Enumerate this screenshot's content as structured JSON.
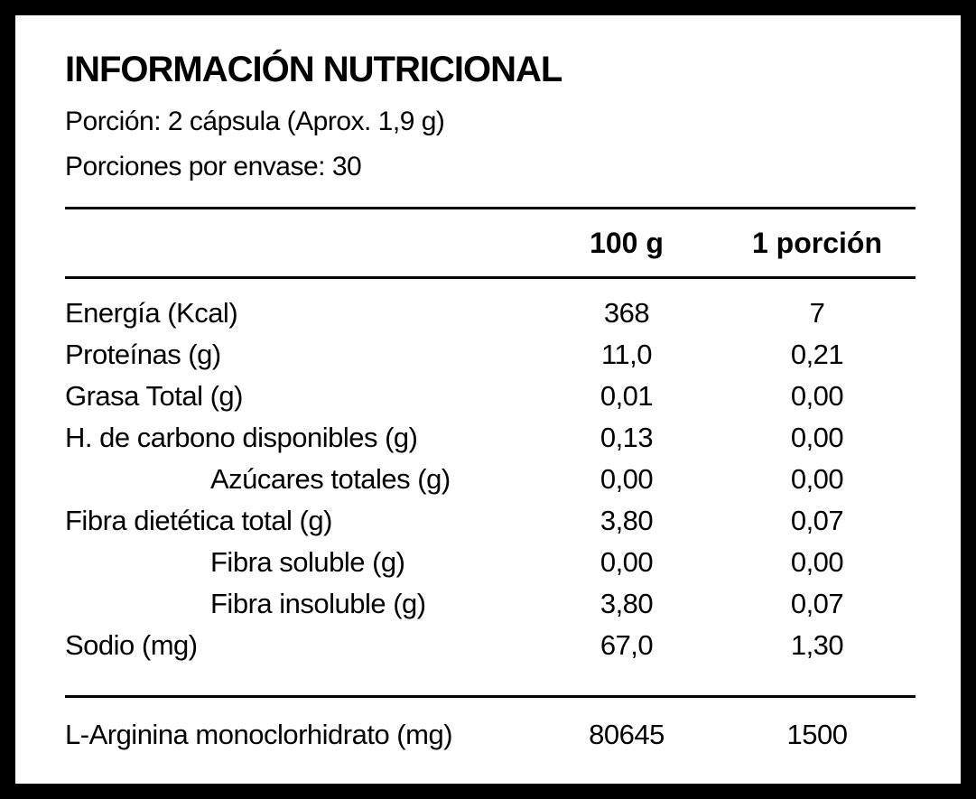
{
  "title": "INFORMACIÓN NUTRICIONAL",
  "serving": "Porción: 2 cápsula (Aprox. 1,9 g)",
  "servings_per_container": "Porciones por envase: 30",
  "table": {
    "columns": [
      "100 g",
      "1 porción"
    ],
    "rows": [
      {
        "label": "Energía (Kcal)",
        "indent": false,
        "values": [
          "368",
          "7"
        ]
      },
      {
        "label": "Proteínas (g)",
        "indent": false,
        "values": [
          "11,0",
          "0,21"
        ]
      },
      {
        "label": "Grasa Total (g)",
        "indent": false,
        "values": [
          "0,01",
          "0,00"
        ]
      },
      {
        "label": "H. de carbono disponibles (g)",
        "indent": false,
        "values": [
          "0,13",
          "0,00"
        ]
      },
      {
        "label": "Azúcares totales (g)",
        "indent": true,
        "values": [
          "0,00",
          "0,00"
        ]
      },
      {
        "label": "Fibra dietética total (g)",
        "indent": false,
        "values": [
          "3,80",
          "0,07"
        ]
      },
      {
        "label": "Fibra soluble (g)",
        "indent": true,
        "values": [
          "0,00",
          "0,00"
        ]
      },
      {
        "label": "Fibra insoluble (g)",
        "indent": true,
        "values": [
          "3,80",
          "0,07"
        ]
      },
      {
        "label": "Sodio (mg)",
        "indent": false,
        "values": [
          "67,0",
          "1,30"
        ]
      }
    ],
    "footer": {
      "label": "L-Arginina monoclorhidrato (mg)",
      "values": [
        "80645",
        "1500"
      ]
    }
  }
}
